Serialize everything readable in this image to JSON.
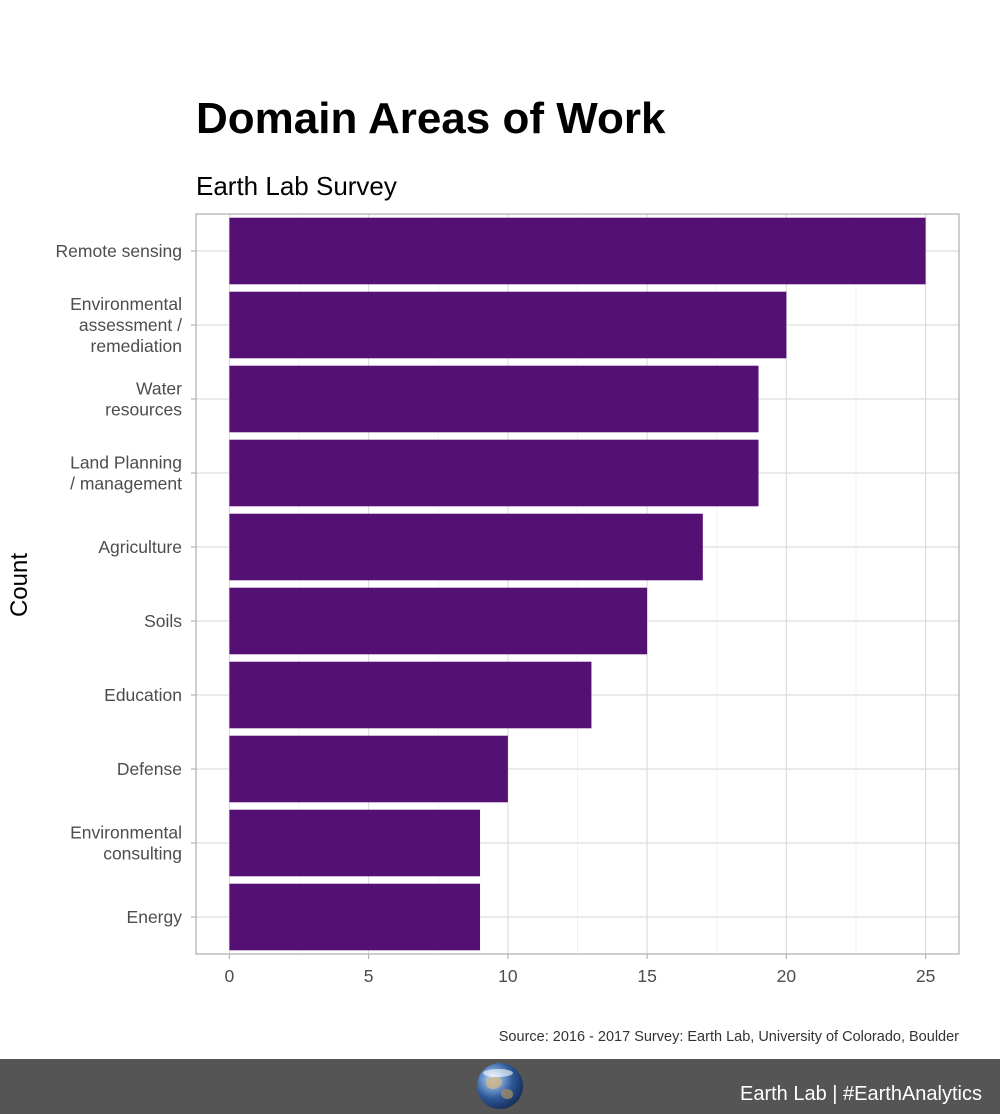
{
  "chart_data": {
    "type": "bar",
    "orientation": "horizontal",
    "title": "Domain Areas of Work",
    "subtitle": "Earth Lab Survey",
    "ylabel": "Count",
    "categories": [
      "Remote sensing",
      "Environmental\nassessment /\nremediation",
      "Water\nresources",
      "Land Planning\n/ management",
      "Agriculture",
      "Soils",
      "Education",
      "Defense",
      "Environmental\nconsulting",
      "Energy"
    ],
    "values": [
      25,
      20,
      19,
      19,
      17,
      15,
      13,
      10,
      9,
      9
    ],
    "xlim": [
      -1.2,
      26.2
    ],
    "xticks": [
      0,
      5,
      10,
      15,
      20,
      25
    ],
    "bar_color": "#541072",
    "grid": true,
    "caption": "Source: 2016 - 2017 Survey: Earth Lab, University of Colorado, Boulder"
  },
  "footer": {
    "text": "Earth Lab | #EarthAnalytics",
    "logo_icon": "globe-icon",
    "background": "#555555"
  }
}
